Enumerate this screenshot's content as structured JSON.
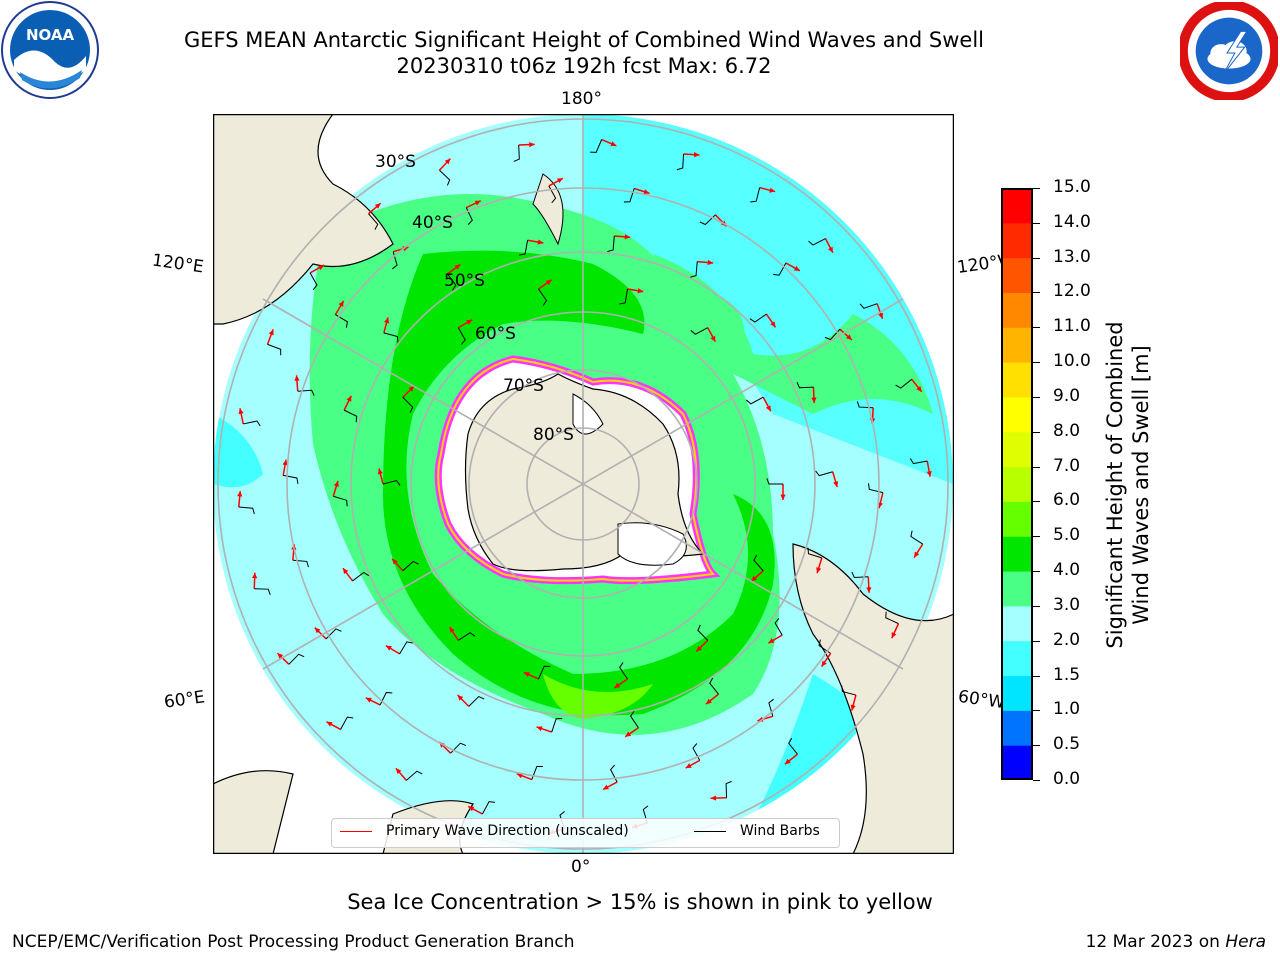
{
  "title": {
    "line1": "GEFS MEAN Antarctic Significant Height of Combined Wind Waves and Swell",
    "line2": "20230310 t06z 192h fcst   Max: 6.72"
  },
  "logos": {
    "left": "noaa-logo",
    "right": "nws-logo",
    "noaa_text": "NOAA"
  },
  "map": {
    "projection": "south-polar-stereographic",
    "meridian_labels": [
      "180°",
      "0°",
      "120°E",
      "120°W",
      "60°E",
      "60°W"
    ],
    "latitude_labels": [
      "30°S",
      "40°S",
      "50°S",
      "60°S",
      "70°S",
      "80°S"
    ],
    "colors": {
      "land": "#eeebdb",
      "coastline": "#000000",
      "grid": "#b0b0b0",
      "wave_arrow": "#ff0000",
      "wind_barb": "#000000",
      "sea_ice": "#ff33ff",
      "sea_ice_edge": "#ffd400"
    }
  },
  "legend": {
    "primary_wave": "Primary Wave Direction (unscaled)",
    "wind_barbs": "Wind Barbs"
  },
  "colorbar": {
    "label_line1": "Significant Height of Combined",
    "label_line2": "Wind Waves and Swell [m]",
    "ticks": [
      "0.0",
      "0.5",
      "1.0",
      "1.5",
      "2.0",
      "3.0",
      "4.0",
      "5.0",
      "6.0",
      "7.0",
      "8.0",
      "9.0",
      "10.0",
      "11.0",
      "12.0",
      "13.0",
      "14.0",
      "15.0"
    ],
    "bands": [
      "#0000ff",
      "#0074ff",
      "#00e5ff",
      "#44ffff",
      "#a6ffff",
      "#4aff85",
      "#00e600",
      "#66ff00",
      "#b8ff00",
      "#dfff00",
      "#ffff00",
      "#ffe000",
      "#ffb400",
      "#ff8800",
      "#ff5500",
      "#ff2a00",
      "#ff0000"
    ]
  },
  "note": "Sea Ice Concentration > 15% is shown in pink to yellow",
  "footer": {
    "left": "NCEP/EMC/Verification Post Processing Product Generation Branch",
    "right_date": "12 Mar 2023 on ",
    "right_host": "Hera"
  }
}
